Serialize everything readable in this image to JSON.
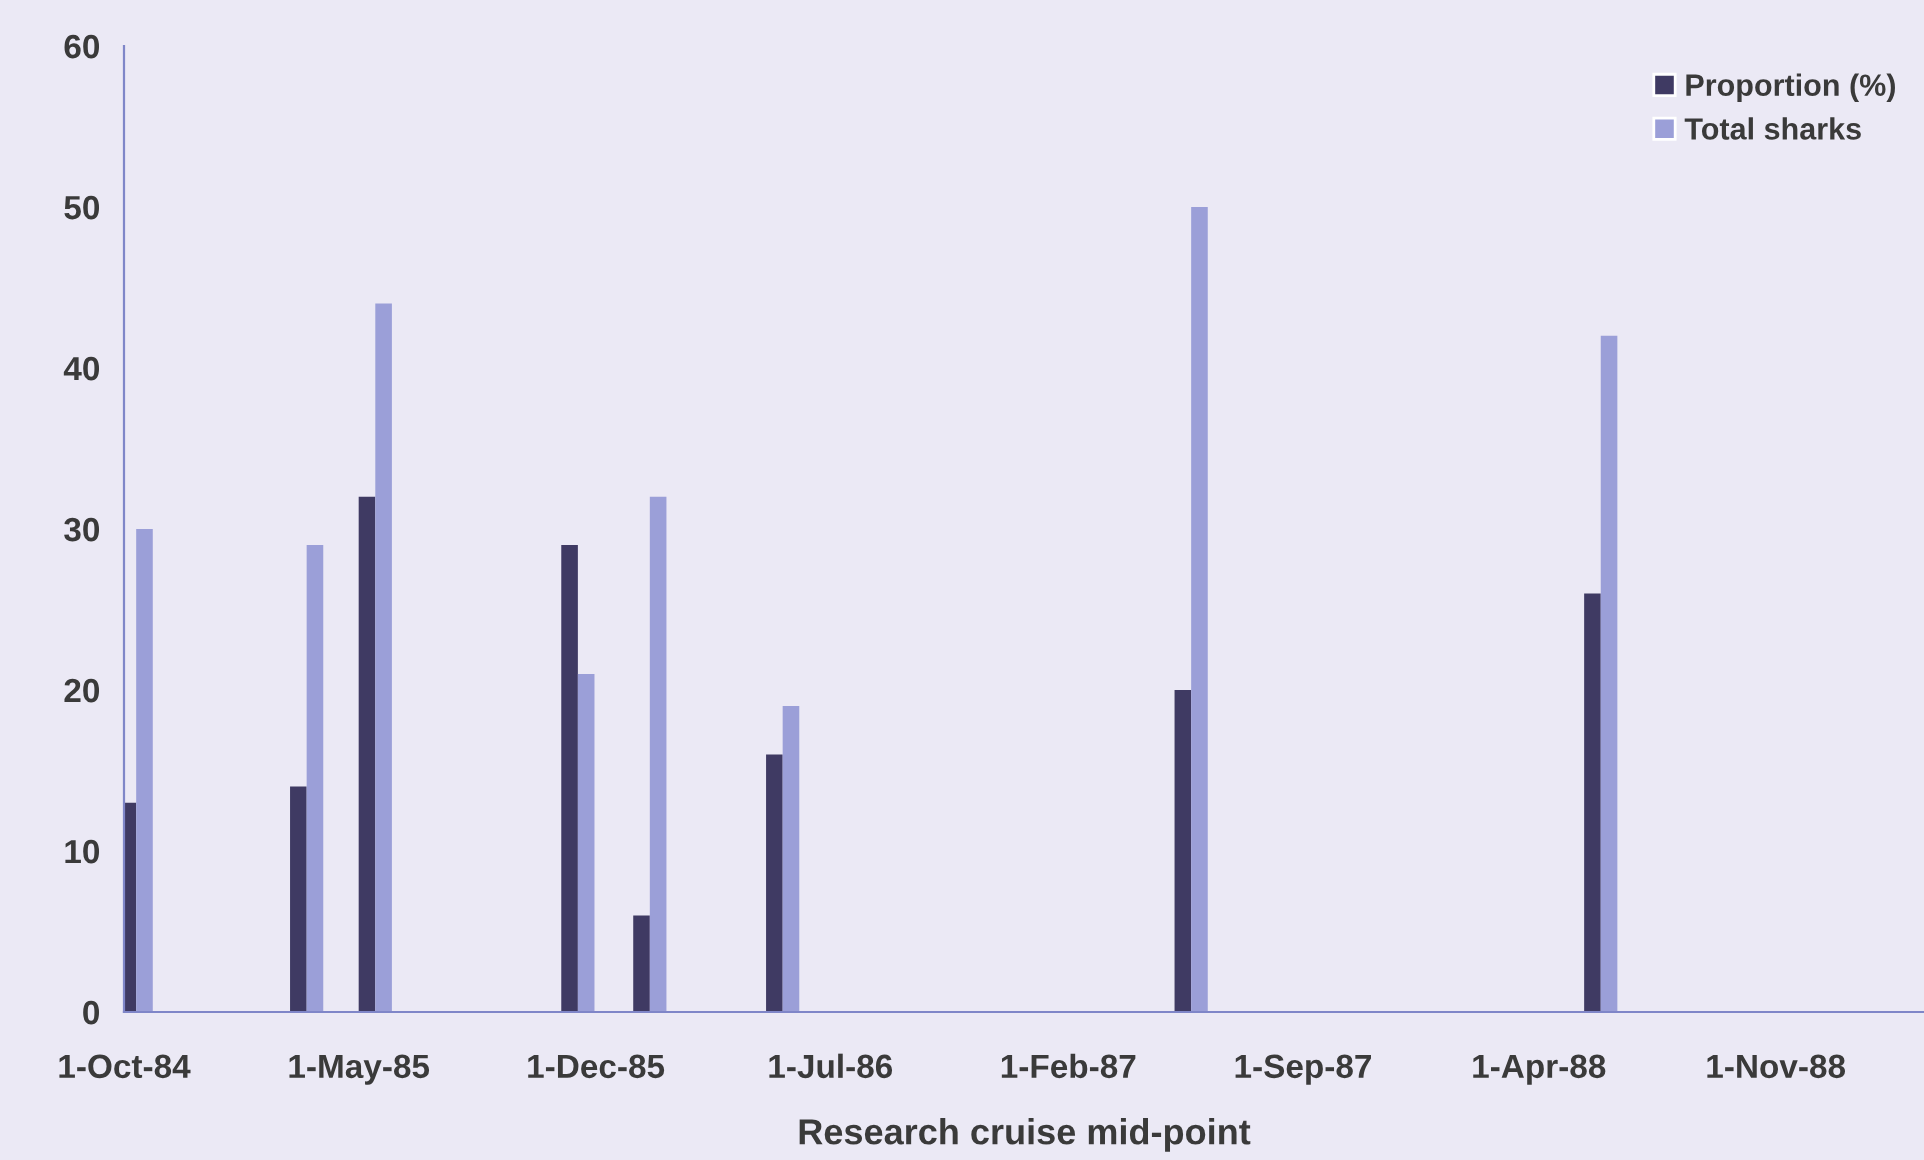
{
  "chart_data": {
    "type": "bar",
    "xlabel": "Research cruise mid-point",
    "x": [
      "1984-10-12",
      "1985-03-15",
      "1985-05-16",
      "1985-11-15",
      "1986-01-19",
      "1986-05-19",
      "1987-05-23",
      "1988-05-27"
    ],
    "series": [
      {
        "name": "Proportion (%)",
        "color": "#3f3a63",
        "values": [
          13,
          14,
          32,
          29,
          6,
          16,
          20,
          26
        ]
      },
      {
        "name": "Total sharks",
        "color": "#9b9fd8",
        "values": [
          30,
          29,
          44,
          21,
          32,
          19,
          50,
          42
        ]
      }
    ],
    "xlim": [
      "1984-10-01",
      "1989-03-15"
    ],
    "xticks": [
      {
        "value": "1984-10-01",
        "label": "1-Oct-84"
      },
      {
        "value": "1985-05-01",
        "label": "1-May-85"
      },
      {
        "value": "1985-12-01",
        "label": "1-Dec-85"
      },
      {
        "value": "1986-07-01",
        "label": "1-Jul-86"
      },
      {
        "value": "1987-02-01",
        "label": "1-Feb-87"
      },
      {
        "value": "1987-09-01",
        "label": "1-Sep-87"
      },
      {
        "value": "1988-04-01",
        "label": "1-Apr-88"
      },
      {
        "value": "1988-11-01",
        "label": "1-Nov-88"
      }
    ],
    "ylim": [
      0,
      60
    ],
    "yticks": [
      0,
      10,
      20,
      30,
      40,
      50,
      60
    ],
    "grid": false,
    "legend": "top right"
  }
}
